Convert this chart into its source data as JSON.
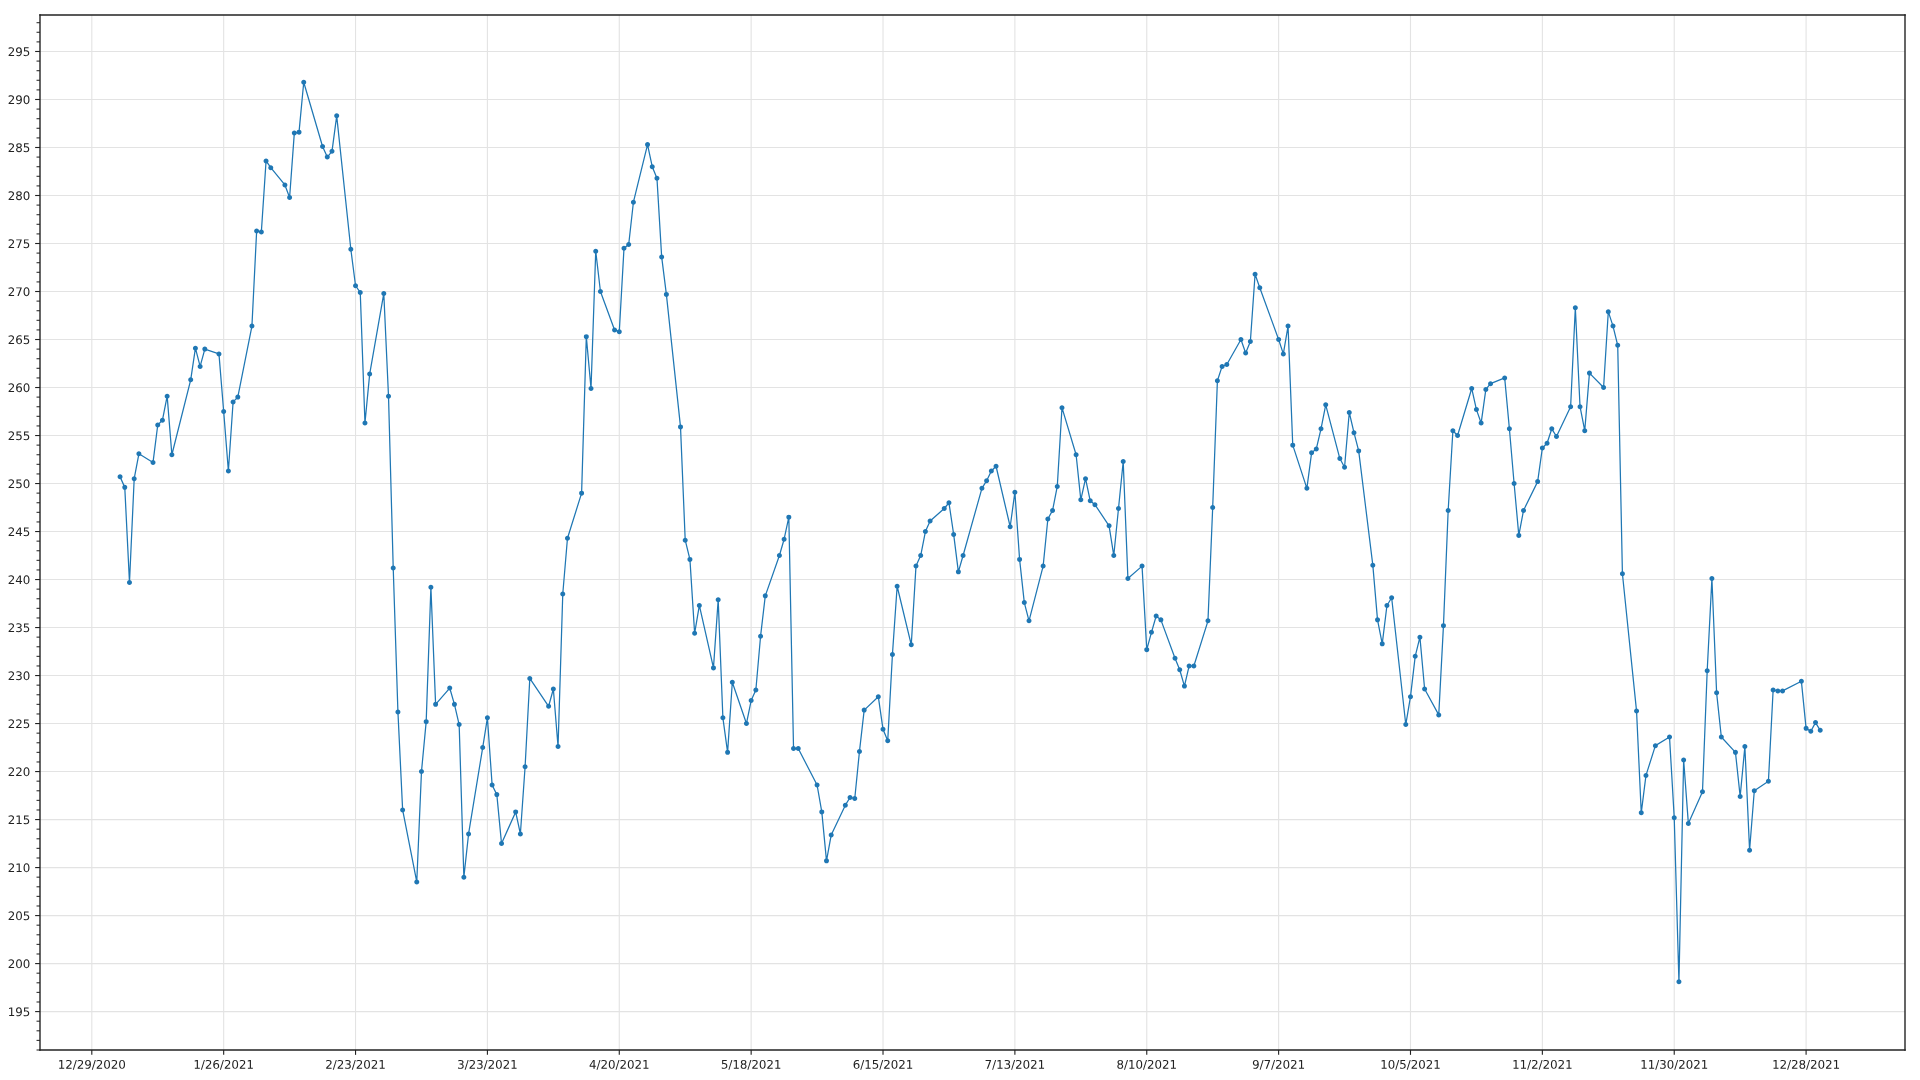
{
  "chart_data": {
    "type": "line",
    "marker": "circle",
    "line_style": "solid",
    "grid": true,
    "xlim": [
      "2020-12-18",
      "2022-01-18"
    ],
    "ylim": [
      191,
      298.8
    ],
    "xticks": [
      {
        "value": "2020-12-29",
        "label": "12/29/2020"
      },
      {
        "value": "2021-01-26",
        "label": "1/26/2021"
      },
      {
        "value": "2021-02-23",
        "label": "2/23/2021"
      },
      {
        "value": "2021-03-23",
        "label": "3/23/2021"
      },
      {
        "value": "2021-04-20",
        "label": "4/20/2021"
      },
      {
        "value": "2021-05-18",
        "label": "5/18/2021"
      },
      {
        "value": "2021-06-15",
        "label": "6/15/2021"
      },
      {
        "value": "2021-07-13",
        "label": "7/13/2021"
      },
      {
        "value": "2021-08-10",
        "label": "8/10/2021"
      },
      {
        "value": "2021-09-07",
        "label": "9/7/2021"
      },
      {
        "value": "2021-10-05",
        "label": "10/5/2021"
      },
      {
        "value": "2021-11-02",
        "label": "11/2/2021"
      },
      {
        "value": "2021-11-30",
        "label": "11/30/2021"
      },
      {
        "value": "2021-12-28",
        "label": "12/28/2021"
      }
    ],
    "yticks": [
      195,
      200,
      205,
      210,
      215,
      220,
      225,
      230,
      235,
      240,
      245,
      250,
      255,
      260,
      265,
      270,
      275,
      280,
      285,
      290,
      295
    ],
    "x": [
      "2021-01-04",
      "2021-01-05",
      "2021-01-06",
      "2021-01-07",
      "2021-01-08",
      "2021-01-11",
      "2021-01-12",
      "2021-01-13",
      "2021-01-14",
      "2021-01-15",
      "2021-01-19",
      "2021-01-20",
      "2021-01-21",
      "2021-01-22",
      "2021-01-25",
      "2021-01-26",
      "2021-01-27",
      "2021-01-28",
      "2021-01-29",
      "2021-02-01",
      "2021-02-02",
      "2021-02-03",
      "2021-02-04",
      "2021-02-05",
      "2021-02-08",
      "2021-02-09",
      "2021-02-10",
      "2021-02-11",
      "2021-02-12",
      "2021-02-16",
      "2021-02-17",
      "2021-02-18",
      "2021-02-19",
      "2021-02-22",
      "2021-02-23",
      "2021-02-24",
      "2021-02-25",
      "2021-02-26",
      "2021-03-01",
      "2021-03-02",
      "2021-03-03",
      "2021-03-04",
      "2021-03-05",
      "2021-03-08",
      "2021-03-09",
      "2021-03-10",
      "2021-03-11",
      "2021-03-12",
      "2021-03-15",
      "2021-03-16",
      "2021-03-17",
      "2021-03-18",
      "2021-03-19",
      "2021-03-22",
      "2021-03-23",
      "2021-03-24",
      "2021-03-25",
      "2021-03-26",
      "2021-03-29",
      "2021-03-30",
      "2021-03-31",
      "2021-04-01",
      "2021-04-05",
      "2021-04-06",
      "2021-04-07",
      "2021-04-08",
      "2021-04-09",
      "2021-04-12",
      "2021-04-13",
      "2021-04-14",
      "2021-04-15",
      "2021-04-16",
      "2021-04-19",
      "2021-04-20",
      "2021-04-21",
      "2021-04-22",
      "2021-04-23",
      "2021-04-26",
      "2021-04-27",
      "2021-04-28",
      "2021-04-29",
      "2021-04-30",
      "2021-05-03",
      "2021-05-04",
      "2021-05-05",
      "2021-05-06",
      "2021-05-07",
      "2021-05-10",
      "2021-05-11",
      "2021-05-12",
      "2021-05-13",
      "2021-05-14",
      "2021-05-17",
      "2021-05-18",
      "2021-05-19",
      "2021-05-20",
      "2021-05-21",
      "2021-05-24",
      "2021-05-25",
      "2021-05-26",
      "2021-05-27",
      "2021-05-28",
      "2021-06-01",
      "2021-06-02",
      "2021-06-03",
      "2021-06-04",
      "2021-06-07",
      "2021-06-08",
      "2021-06-09",
      "2021-06-10",
      "2021-06-11",
      "2021-06-14",
      "2021-06-15",
      "2021-06-16",
      "2021-06-17",
      "2021-06-18",
      "2021-06-21",
      "2021-06-22",
      "2021-06-23",
      "2021-06-24",
      "2021-06-25",
      "2021-06-28",
      "2021-06-29",
      "2021-06-30",
      "2021-07-01",
      "2021-07-02",
      "2021-07-06",
      "2021-07-07",
      "2021-07-08",
      "2021-07-09",
      "2021-07-12",
      "2021-07-13",
      "2021-07-14",
      "2021-07-15",
      "2021-07-16",
      "2021-07-19",
      "2021-07-20",
      "2021-07-21",
      "2021-07-22",
      "2021-07-23",
      "2021-07-26",
      "2021-07-27",
      "2021-07-28",
      "2021-07-29",
      "2021-07-30",
      "2021-08-02",
      "2021-08-03",
      "2021-08-04",
      "2021-08-05",
      "2021-08-06",
      "2021-08-09",
      "2021-08-10",
      "2021-08-11",
      "2021-08-12",
      "2021-08-13",
      "2021-08-16",
      "2021-08-17",
      "2021-08-18",
      "2021-08-19",
      "2021-08-20",
      "2021-08-23",
      "2021-08-24",
      "2021-08-25",
      "2021-08-26",
      "2021-08-27",
      "2021-08-30",
      "2021-08-31",
      "2021-09-01",
      "2021-09-02",
      "2021-09-03",
      "2021-09-07",
      "2021-09-08",
      "2021-09-09",
      "2021-09-10",
      "2021-09-13",
      "2021-09-14",
      "2021-09-15",
      "2021-09-16",
      "2021-09-17",
      "2021-09-20",
      "2021-09-21",
      "2021-09-22",
      "2021-09-23",
      "2021-09-24",
      "2021-09-27",
      "2021-09-28",
      "2021-09-29",
      "2021-09-30",
      "2021-10-01",
      "2021-10-04",
      "2021-10-05",
      "2021-10-06",
      "2021-10-07",
      "2021-10-08",
      "2021-10-11",
      "2021-10-12",
      "2021-10-13",
      "2021-10-14",
      "2021-10-15",
      "2021-10-18",
      "2021-10-19",
      "2021-10-20",
      "2021-10-21",
      "2021-10-22",
      "2021-10-25",
      "2021-10-26",
      "2021-10-27",
      "2021-10-28",
      "2021-10-29",
      "2021-11-01",
      "2021-11-02",
      "2021-11-03",
      "2021-11-04",
      "2021-11-05",
      "2021-11-08",
      "2021-11-09",
      "2021-11-10",
      "2021-11-11",
      "2021-11-12",
      "2021-11-15",
      "2021-11-16",
      "2021-11-17",
      "2021-11-18",
      "2021-11-19",
      "2021-11-22",
      "2021-11-23",
      "2021-11-24",
      "2021-11-26",
      "2021-11-29",
      "2021-11-30",
      "2021-12-01",
      "2021-12-02",
      "2021-12-03",
      "2021-12-06",
      "2021-12-07",
      "2021-12-08",
      "2021-12-09",
      "2021-12-10",
      "2021-12-13",
      "2021-12-14",
      "2021-12-15",
      "2021-12-16",
      "2021-12-17",
      "2021-12-20",
      "2021-12-21",
      "2021-12-22",
      "2021-12-23",
      "2021-12-27",
      "2021-12-28",
      "2021-12-29",
      "2021-12-30",
      "2021-12-31"
    ],
    "series": [
      {
        "color": "#1f77b4",
        "values": [
          250.7,
          249.6,
          239.7,
          250.5,
          253.1,
          252.2,
          256.1,
          256.6,
          259.1,
          253.0,
          260.8,
          264.1,
          262.2,
          264.0,
          263.5,
          257.5,
          251.3,
          258.5,
          259.0,
          266.4,
          276.3,
          276.2,
          283.6,
          282.9,
          281.1,
          279.8,
          286.5,
          286.6,
          291.8,
          285.1,
          284.0,
          284.6,
          288.3,
          274.4,
          270.6,
          269.9,
          256.3,
          261.4,
          269.8,
          259.1,
          241.2,
          226.2,
          216.0,
          208.5,
          220.0,
          225.2,
          239.2,
          227.0,
          228.7,
          227.0,
          224.9,
          209.0,
          213.5,
          222.5,
          225.6,
          218.6,
          217.6,
          212.5,
          215.8,
          213.5,
          220.5,
          229.7,
          226.8,
          228.6,
          222.6,
          238.5,
          244.3,
          249.0,
          265.3,
          259.9,
          274.2,
          270.0,
          266.0,
          265.8,
          274.5,
          274.9,
          279.3,
          285.3,
          283.0,
          281.8,
          273.6,
          269.7,
          255.9,
          244.1,
          242.1,
          234.4,
          237.3,
          230.8,
          237.9,
          225.6,
          222.0,
          229.3,
          225.0,
          227.4,
          228.5,
          234.1,
          238.3,
          242.5,
          244.2,
          246.5,
          222.4,
          222.4,
          218.6,
          215.8,
          210.7,
          213.4,
          216.5,
          217.3,
          217.2,
          222.1,
          226.4,
          227.8,
          224.4,
          223.2,
          232.2,
          239.3,
          233.2,
          241.4,
          242.5,
          245.0,
          246.1,
          247.4,
          248.0,
          244.7,
          240.8,
          242.5,
          249.5,
          250.3,
          251.3,
          251.8,
          245.5,
          249.1,
          242.1,
          237.6,
          235.7,
          241.4,
          246.3,
          247.2,
          249.7,
          257.9,
          253.0,
          248.3,
          250.5,
          248.2,
          247.8,
          245.6,
          242.5,
          247.4,
          252.3,
          240.1,
          241.4,
          232.7,
          234.5,
          236.2,
          235.8,
          231.8,
          230.6,
          228.9,
          231.0,
          231.0,
          235.7,
          247.5,
          260.7,
          262.2,
          262.4,
          265.0,
          263.6,
          264.8,
          271.8,
          270.4,
          265.0,
          263.5,
          266.4,
          254.0,
          249.5,
          253.2,
          253.6,
          255.7,
          258.2,
          252.6,
          251.7,
          257.4,
          255.3,
          253.4,
          241.5,
          235.8,
          233.3,
          237.3,
          238.1,
          224.9,
          227.8,
          232.0,
          234.0,
          228.6,
          225.9,
          235.2,
          247.2,
          255.5,
          255.0,
          259.9,
          257.7,
          256.3,
          259.8,
          260.4,
          261.0,
          255.7,
          250.0,
          244.6,
          247.2,
          250.2,
          253.7,
          254.2,
          255.7,
          254.9,
          258.0,
          268.3,
          258.0,
          255.5,
          261.5,
          260.0,
          267.9,
          266.4,
          264.4,
          240.6,
          226.3,
          215.7,
          219.6,
          222.7,
          223.6,
          215.2,
          198.1,
          221.2,
          214.6,
          217.9,
          230.5,
          240.1,
          228.2,
          223.6,
          222.0,
          217.4,
          222.6,
          211.8,
          218.0,
          219.0,
          228.5,
          228.4,
          228.4,
          229.4,
          224.5,
          224.2,
          225.1,
          224.3
        ]
      }
    ]
  }
}
